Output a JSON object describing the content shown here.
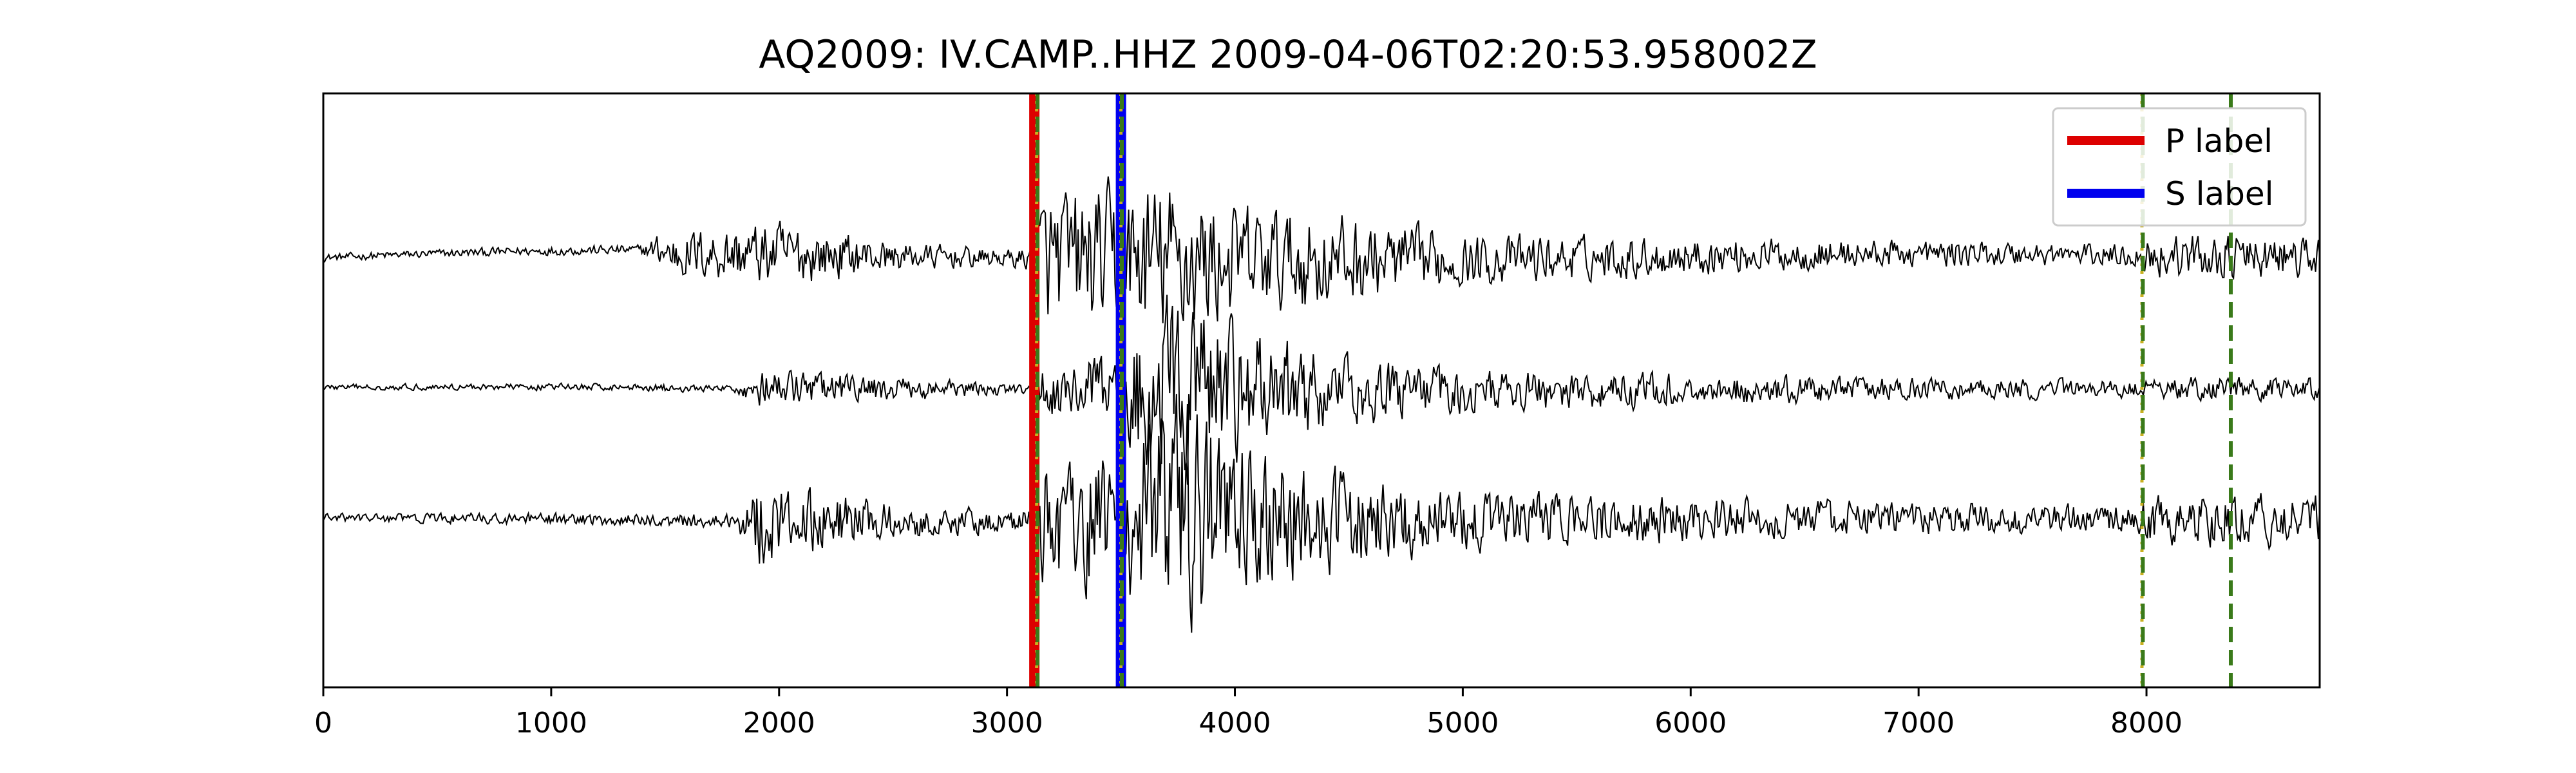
{
  "chart_data": {
    "type": "line",
    "title": "AQ2009: IV.CAMP..HHZ 2009-04-06T02:20:53.958002Z",
    "xlabel": "",
    "ylabel": "",
    "xlim": [
      0,
      8760
    ],
    "x_ticks": [
      0,
      1000,
      2000,
      3000,
      4000,
      5000,
      6000,
      7000,
      8000
    ],
    "y_ticks_visible": false,
    "grid": false,
    "legend_position": "top-right",
    "n_samples": 8760,
    "colors": {
      "trace": "#000000",
      "p_label": "#dd0000",
      "s_label": "#0000ee",
      "pick_dotted": "#c8b020",
      "pick_dashed": "#3a7a1a"
    },
    "series": [
      {
        "id": "trace-1",
        "noise_onset_sample": 1500,
        "envelope": [
          [
            0,
            0.05
          ],
          [
            1400,
            0.07
          ],
          [
            1500,
            0.3
          ],
          [
            2000,
            0.45
          ],
          [
            2500,
            0.2
          ],
          [
            3000,
            0.12
          ],
          [
            3120,
            0.18
          ],
          [
            3150,
            0.9
          ],
          [
            3500,
            1.0
          ],
          [
            3700,
            1.1
          ],
          [
            4000,
            0.8
          ],
          [
            4500,
            0.6
          ],
          [
            5000,
            0.35
          ],
          [
            6000,
            0.25
          ],
          [
            7000,
            0.18
          ],
          [
            7950,
            0.15
          ],
          [
            8000,
            0.3
          ],
          [
            8760,
            0.3
          ]
        ]
      },
      {
        "id": "trace-2",
        "noise_onset_sample": 1800,
        "envelope": [
          [
            0,
            0.04
          ],
          [
            1800,
            0.05
          ],
          [
            1900,
            0.25
          ],
          [
            2300,
            0.2
          ],
          [
            3000,
            0.08
          ],
          [
            3120,
            0.08
          ],
          [
            3150,
            0.35
          ],
          [
            3500,
            0.5
          ],
          [
            3600,
            1.2
          ],
          [
            3800,
            1.25
          ],
          [
            4000,
            0.9
          ],
          [
            4500,
            0.45
          ],
          [
            5000,
            0.3
          ],
          [
            6000,
            0.22
          ],
          [
            7000,
            0.15
          ],
          [
            7950,
            0.12
          ],
          [
            8000,
            0.15
          ],
          [
            8760,
            0.15
          ]
        ]
      },
      {
        "id": "trace-3",
        "noise_onset_sample": 1900,
        "envelope": [
          [
            0,
            0.06
          ],
          [
            1800,
            0.1
          ],
          [
            1900,
            0.6
          ],
          [
            2100,
            0.45
          ],
          [
            2500,
            0.25
          ],
          [
            3000,
            0.15
          ],
          [
            3120,
            0.18
          ],
          [
            3150,
            0.9
          ],
          [
            3500,
            1.0
          ],
          [
            3600,
            1.5
          ],
          [
            3800,
            1.6
          ],
          [
            4000,
            1.1
          ],
          [
            4500,
            0.6
          ],
          [
            5000,
            0.4
          ],
          [
            6000,
            0.3
          ],
          [
            7000,
            0.22
          ],
          [
            7950,
            0.2
          ],
          [
            8000,
            0.35
          ],
          [
            8760,
            0.35
          ]
        ]
      }
    ],
    "picks": [
      {
        "id": "p-label",
        "x": 3120,
        "style": "solid-band",
        "color_key": "p_label",
        "legend": "P label"
      },
      {
        "id": "p-pick-dotted",
        "x": 3130,
        "style": "dotted",
        "color_key": "pick_dotted"
      },
      {
        "id": "p-pick-dashed",
        "x": 3134,
        "style": "dashed",
        "color_key": "pick_dashed"
      },
      {
        "id": "s-label",
        "x": 3500,
        "style": "solid-band",
        "color_key": "s_label",
        "legend": "S label"
      },
      {
        "id": "s-pick-dotted",
        "x": 3500,
        "style": "dotted",
        "color_key": "pick_dotted"
      },
      {
        "id": "s-pick-dashed",
        "x": 3504,
        "style": "dashed",
        "color_key": "pick_dashed"
      },
      {
        "id": "late-pick-dotted",
        "x": 7980,
        "style": "dotted",
        "color_key": "pick_dotted"
      },
      {
        "id": "late-pick-dashed",
        "x": 7984,
        "style": "dashed",
        "color_key": "pick_dashed"
      },
      {
        "id": "late-pick-dashed-2",
        "x": 8370,
        "style": "dashed",
        "color_key": "pick_dashed"
      }
    ],
    "legend": [
      {
        "label": "P label",
        "color_key": "p_label"
      },
      {
        "label": "S label",
        "color_key": "s_label"
      }
    ]
  }
}
